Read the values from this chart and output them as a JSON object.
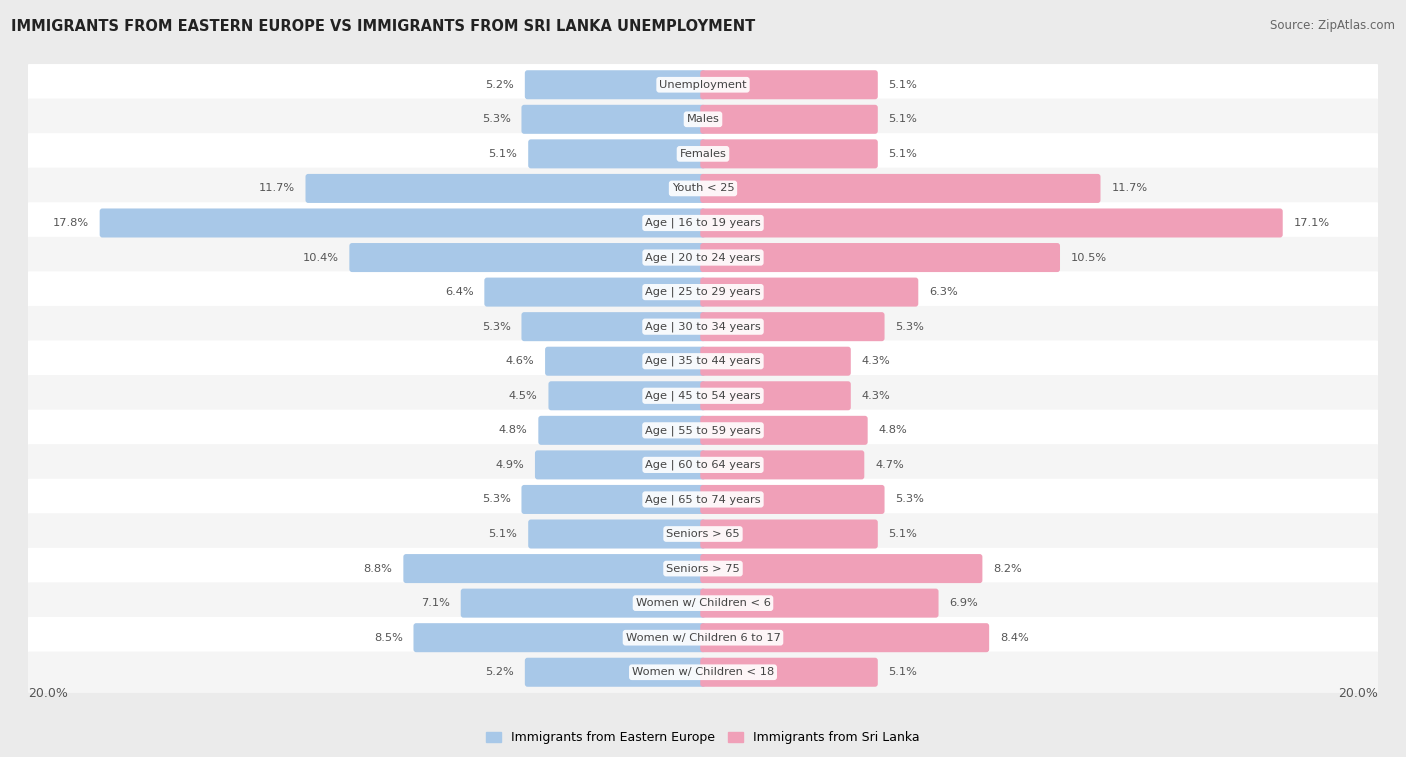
{
  "title": "IMMIGRANTS FROM EASTERN EUROPE VS IMMIGRANTS FROM SRI LANKA UNEMPLOYMENT",
  "source": "Source: ZipAtlas.com",
  "categories": [
    "Unemployment",
    "Males",
    "Females",
    "Youth < 25",
    "Age | 16 to 19 years",
    "Age | 20 to 24 years",
    "Age | 25 to 29 years",
    "Age | 30 to 34 years",
    "Age | 35 to 44 years",
    "Age | 45 to 54 years",
    "Age | 55 to 59 years",
    "Age | 60 to 64 years",
    "Age | 65 to 74 years",
    "Seniors > 65",
    "Seniors > 75",
    "Women w/ Children < 6",
    "Women w/ Children 6 to 17",
    "Women w/ Children < 18"
  ],
  "eastern_europe": [
    5.2,
    5.3,
    5.1,
    11.7,
    17.8,
    10.4,
    6.4,
    5.3,
    4.6,
    4.5,
    4.8,
    4.9,
    5.3,
    5.1,
    8.8,
    7.1,
    8.5,
    5.2
  ],
  "sri_lanka": [
    5.1,
    5.1,
    5.1,
    11.7,
    17.1,
    10.5,
    6.3,
    5.3,
    4.3,
    4.3,
    4.8,
    4.7,
    5.3,
    5.1,
    8.2,
    6.9,
    8.4,
    5.1
  ],
  "max_val": 20.0,
  "bar_color_ee": "#a8c8e8",
  "bar_color_sl": "#f0a0b8",
  "bg_color": "#ebebeb",
  "row_bg_even": "#f5f5f5",
  "row_bg_odd": "#ffffff",
  "legend_label_ee": "Immigrants from Eastern Europe",
  "legend_label_sl": "Immigrants from Sri Lanka"
}
